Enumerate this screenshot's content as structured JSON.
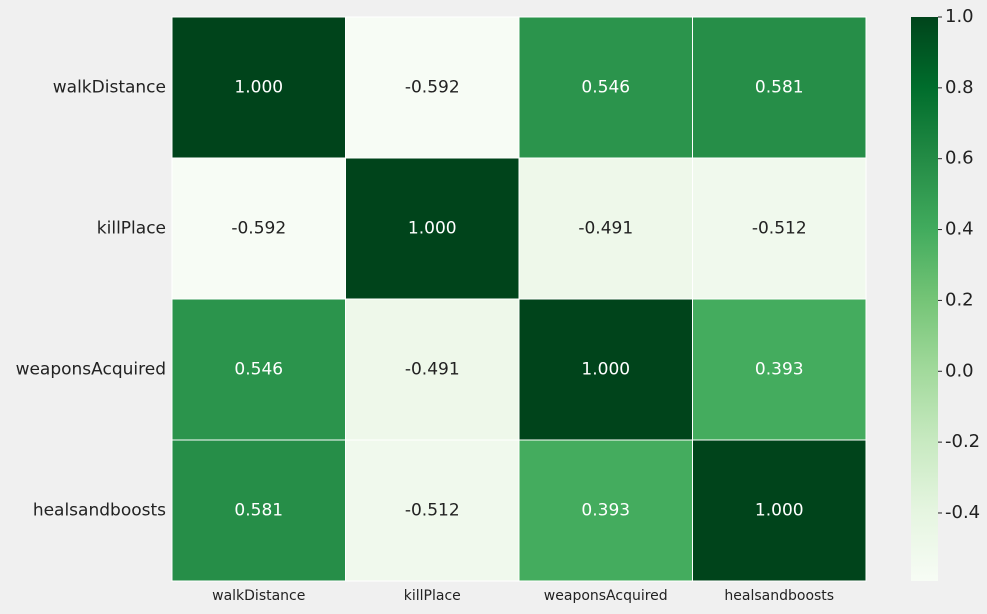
{
  "chart_data": {
    "type": "heatmap",
    "categories": [
      "walkDistance",
      "killPlace",
      "weaponsAcquired",
      "healsandboosts"
    ],
    "y_categories": [
      "walkDistance",
      "killPlace",
      "weaponsAcquired",
      "healsandboosts"
    ],
    "z": [
      [
        1.0,
        -0.592,
        0.546,
        0.581
      ],
      [
        -0.592,
        1.0,
        -0.491,
        -0.512
      ],
      [
        0.546,
        -0.491,
        1.0,
        0.393
      ],
      [
        0.581,
        -0.512,
        0.393,
        1.0
      ]
    ],
    "value_labels": [
      [
        "1.000",
        "-0.592",
        "0.546",
        "0.581"
      ],
      [
        "-0.592",
        "1.000",
        "-0.491",
        "-0.512"
      ],
      [
        "0.546",
        "-0.491",
        "1.000",
        "0.393"
      ],
      [
        "0.581",
        "-0.512",
        "0.393",
        "1.000"
      ]
    ],
    "zlim": [
      -0.592,
      1.0
    ],
    "zticks": [
      {
        "value": 1.0,
        "label": "1.0"
      },
      0.8,
      0.6,
      0.4,
      0.2,
      {
        "value": 0.0,
        "label": "0.0"
      },
      -0.2,
      -0.4
    ],
    "colormap": [
      "#f7fcf5",
      "#e5f5e0",
      "#c7e9c0",
      "#a1d99b",
      "#74c476",
      "#41ab5d",
      "#238b45",
      "#006d2c",
      "#00441b"
    ]
  }
}
